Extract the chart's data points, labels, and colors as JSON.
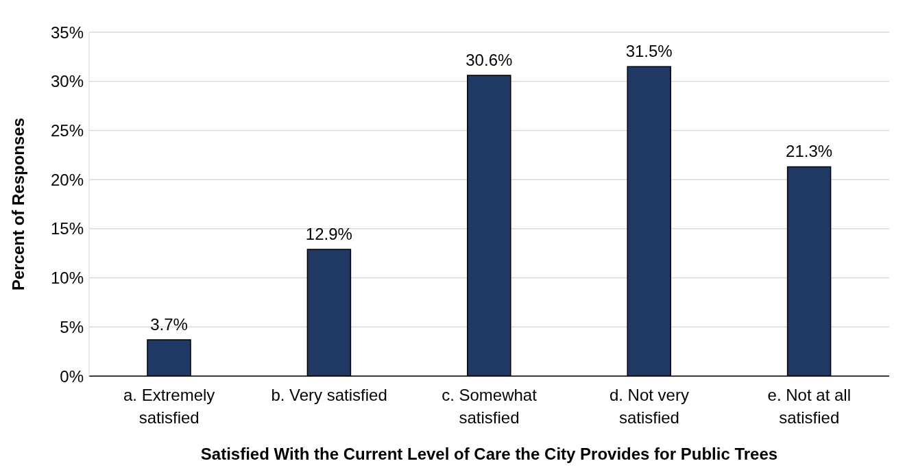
{
  "chart_data": {
    "type": "bar",
    "xlabel": "Satisfied With the Current Level of Care the City Provides for Public Trees",
    "ylabel": "Percent of Responses",
    "categories": [
      "a. Extremely satisfied",
      "b. Very satisfied",
      "c. Somewhat satisfied",
      "d. Not very satisfied",
      "e. Not at all satisfied"
    ],
    "values": [
      3.7,
      12.9,
      30.6,
      31.5,
      21.3
    ],
    "value_labels": [
      "3.7%",
      "12.9%",
      "30.6%",
      "31.5%",
      "21.3%"
    ],
    "color": "#1f3864",
    "ylim": [
      0,
      35
    ],
    "yticks": [
      {
        "value": 0,
        "label": "0%"
      },
      {
        "value": 5,
        "label": "5%"
      },
      {
        "value": 10,
        "label": "10%"
      },
      {
        "value": 15,
        "label": "15%"
      },
      {
        "value": 20,
        "label": "20%"
      },
      {
        "value": 25,
        "label": "25%"
      },
      {
        "value": 30,
        "label": "30%"
      },
      {
        "value": 35,
        "label": "35%"
      }
    ],
    "grid": "y",
    "legend": false
  }
}
